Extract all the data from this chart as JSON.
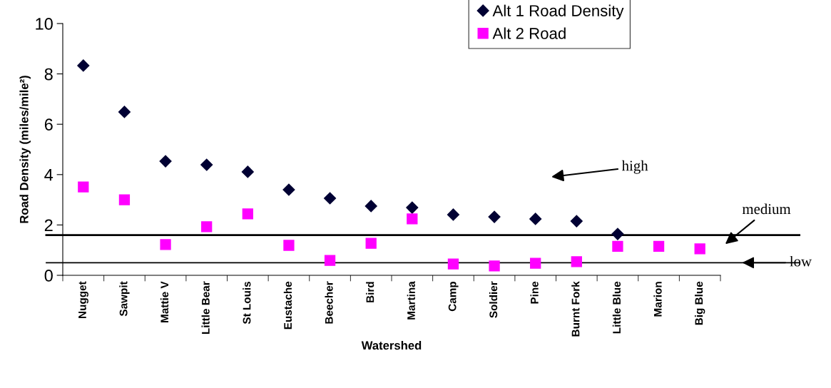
{
  "chart_data": {
    "type": "scatter",
    "xlabel": "Watershed",
    "ylabel": "Road Density (miles/mile²)",
    "categories": [
      "Nugget",
      "Sawpit",
      "Mattie V",
      "Little Bear",
      "St Louis",
      "Eustache",
      "Beecher",
      "Bird",
      "Martina",
      "Camp",
      "Soldier",
      "Pine",
      "Burnt Fork",
      "Little Blue",
      "Marion",
      "Big Blue"
    ],
    "series": [
      {
        "name": "Alt 1 Road Density",
        "color": "#000033",
        "marker": "diamond",
        "values": [
          8.33,
          6.49,
          4.53,
          4.39,
          4.11,
          3.4,
          3.06,
          2.75,
          2.69,
          2.41,
          2.32,
          2.24,
          2.15,
          1.64,
          null,
          null
        ]
      },
      {
        "name": "Alt 2 Road",
        "color": "#ff00ff",
        "marker": "square",
        "values": [
          3.51,
          3.0,
          1.22,
          1.93,
          2.44,
          1.19,
          0.59,
          1.27,
          2.24,
          0.45,
          0.37,
          0.48,
          0.54,
          1.15,
          1.15,
          1.05
        ]
      }
    ],
    "ylim": [
      0,
      10
    ],
    "yticks": [
      0,
      2,
      4,
      6,
      8,
      10
    ],
    "ref_lines": [
      {
        "axis": "y",
        "value": 1.6,
        "label": "medium",
        "color": "#000000"
      },
      {
        "axis": "y",
        "value": 0.5,
        "label": "low",
        "color": "#000000"
      }
    ],
    "annotations": [
      "high"
    ],
    "grid": false,
    "legend": "top"
  }
}
